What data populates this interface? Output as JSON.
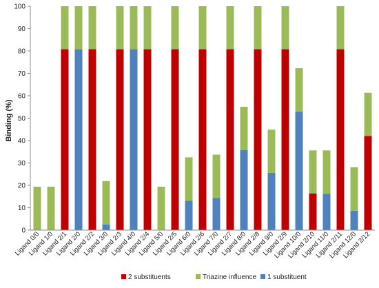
{
  "chart_data": {
    "type": "bar",
    "stacked": true,
    "ylabel": "Binding (%)",
    "ylim": [
      0,
      100
    ],
    "yticks": [
      0,
      10,
      20,
      30,
      40,
      50,
      60,
      70,
      80,
      90,
      100
    ],
    "grid": false,
    "legend_position": "bottom",
    "categories": [
      "Ligand 0/0",
      "Ligand 1/0",
      "Ligand 2/1",
      "Ligand 2/0",
      "Ligand 2/2",
      "Ligand 3/0",
      "Ligand 2/3",
      "Ligand 4/0",
      "Ligand 2/4",
      "Ligand 5/0",
      "Ligand 2/5",
      "Ligand 6/0",
      "Ligand 2/6",
      "Ligand 7/0",
      "Ligand 2/7",
      "Ligand 8/0",
      "Ligand 2/8",
      "Ligand 9/0",
      "Ligand 2/9",
      "Ligand 10/0",
      "Ligand 2/10",
      "Ligand 11/0",
      "Ligand 2/11",
      "Ligand 12/0",
      "Ligand 2/12"
    ],
    "series": [
      {
        "name": "1 substituent",
        "color": "#4f81bd",
        "values": [
          0,
          0,
          0,
          80.8,
          0,
          2.5,
          0,
          80.8,
          0,
          0,
          0,
          13.1,
          0,
          14.3,
          0,
          35.7,
          0,
          25.6,
          0,
          52.9,
          0,
          16.2,
          0,
          8.7,
          0
        ]
      },
      {
        "name": "2 substituents",
        "color": "#c00000",
        "values": [
          0,
          0,
          80.8,
          0,
          80.8,
          0,
          80.8,
          0,
          80.8,
          0,
          80.8,
          0,
          80.8,
          0,
          80.8,
          0,
          80.8,
          0,
          80.8,
          0,
          16.4,
          0,
          80.8,
          0,
          42.0
        ]
      },
      {
        "name": "Triazine influence",
        "color": "#9bbb59",
        "values": [
          19.4,
          19.4,
          19.2,
          19.2,
          19.2,
          19.4,
          19.2,
          19.2,
          19.2,
          19.4,
          19.2,
          19.4,
          19.2,
          19.4,
          19.2,
          19.4,
          19.2,
          19.3,
          19.2,
          19.4,
          19.2,
          19.4,
          19.2,
          19.4,
          19.3
        ]
      }
    ],
    "legend_order": [
      "2 substituents",
      "Triazine influence",
      "1 substituent"
    ]
  }
}
